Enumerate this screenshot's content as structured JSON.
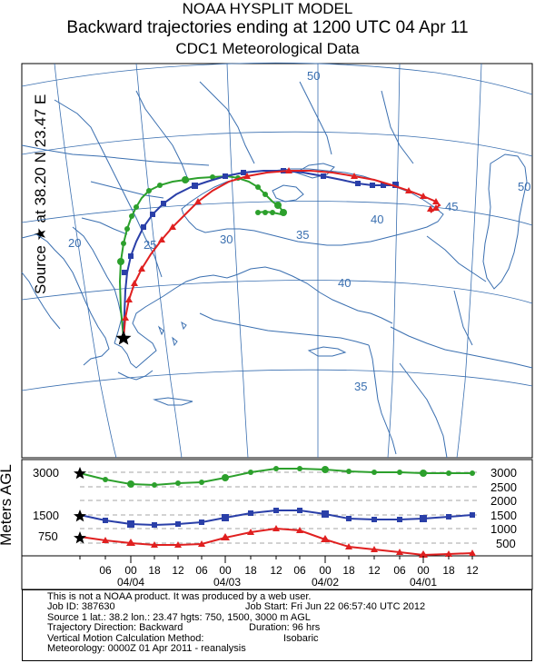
{
  "title": {
    "line1": "NOAA HYSPLIT MODEL",
    "line2": "Backward trajectories ending at 1200 UTC 04 Apr 11",
    "line3": "CDC1 Meteorological Data"
  },
  "side_label": "Source ★ at  38.20 N  23.47 E",
  "side_label_height": "Meters AGL",
  "map": {
    "contour_labels": [
      "50",
      "45",
      "50",
      "40",
      "20",
      "25",
      "30",
      "35",
      "40",
      "35"
    ],
    "trajectories": [
      {
        "name": "3000",
        "color": "#2ca02c"
      },
      {
        "name": "1500",
        "color": "#2a3fa8"
      },
      {
        "name": "750",
        "color": "#e02020"
      }
    ]
  },
  "height_panel": {
    "left_ticks": [
      "3000",
      "1500",
      "750"
    ],
    "right_ticks": [
      "3000",
      "2500",
      "2000",
      "1500",
      "1000",
      "500"
    ],
    "hour_labels": [
      "06",
      "00",
      "18",
      "12",
      "06",
      "00",
      "18",
      "12",
      "06",
      "00",
      "18",
      "12",
      "06",
      "00",
      "18",
      "12"
    ],
    "date_labels": [
      "04/04",
      "04/03",
      "04/02",
      "04/01"
    ]
  },
  "footer": {
    "line1": "This is not a NOAA product.  It was produced by a web user.",
    "line2a": "Job ID: 387630",
    "line2b": "Job Start: Fri Jun 22 06:57:40 UTC 2012",
    "line3": "Source 1     lat.: 38.2     lon.: 23.47     hgts: 750, 1500, 3000 m AGL",
    "line4a": "Trajectory Direction: Backward",
    "line4b": "Duration: 96 hrs",
    "line5a": "Vertical Motion Calculation Method:",
    "line5b": "Isobaric",
    "line6": "Meteorology: 0000Z 01 Apr 2011 - reanalysis"
  }
}
